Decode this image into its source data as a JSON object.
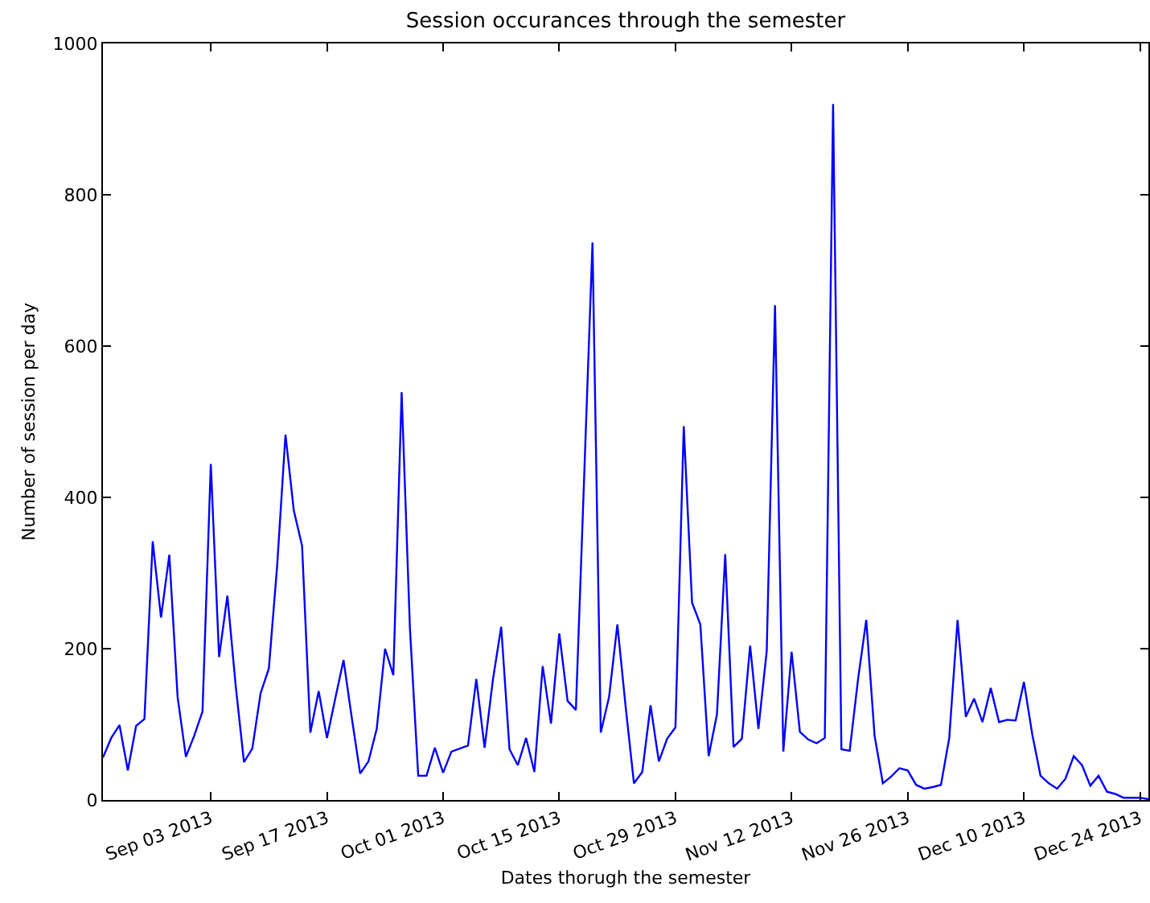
{
  "chart_data": {
    "type": "line",
    "title": "Session occurances through the semester",
    "xlabel": "Dates thorugh the semester",
    "ylabel": "Number of session per day",
    "x": [
      "2013-08-21",
      "2013-08-22",
      "2013-08-23",
      "2013-08-24",
      "2013-08-25",
      "2013-08-26",
      "2013-08-27",
      "2013-08-28",
      "2013-08-29",
      "2013-08-30",
      "2013-08-31",
      "2013-09-01",
      "2013-09-02",
      "2013-09-03",
      "2013-09-04",
      "2013-09-05",
      "2013-09-06",
      "2013-09-07",
      "2013-09-08",
      "2013-09-09",
      "2013-09-10",
      "2013-09-11",
      "2013-09-12",
      "2013-09-13",
      "2013-09-14",
      "2013-09-15",
      "2013-09-16",
      "2013-09-17",
      "2013-09-18",
      "2013-09-19",
      "2013-09-20",
      "2013-09-21",
      "2013-09-22",
      "2013-09-23",
      "2013-09-24",
      "2013-09-25",
      "2013-09-26",
      "2013-09-27",
      "2013-09-28",
      "2013-09-29",
      "2013-09-30",
      "2013-10-01",
      "2013-10-02",
      "2013-10-03",
      "2013-10-04",
      "2013-10-05",
      "2013-10-06",
      "2013-10-07",
      "2013-10-08",
      "2013-10-09",
      "2013-10-10",
      "2013-10-11",
      "2013-10-12",
      "2013-10-13",
      "2013-10-14",
      "2013-10-15",
      "2013-10-16",
      "2013-10-17",
      "2013-10-18",
      "2013-10-19",
      "2013-10-20",
      "2013-10-21",
      "2013-10-22",
      "2013-10-23",
      "2013-10-24",
      "2013-10-25",
      "2013-10-26",
      "2013-10-27",
      "2013-10-28",
      "2013-10-29",
      "2013-10-30",
      "2013-10-31",
      "2013-11-01",
      "2013-11-02",
      "2013-11-03",
      "2013-11-04",
      "2013-11-05",
      "2013-11-06",
      "2013-11-07",
      "2013-11-08",
      "2013-11-09",
      "2013-11-10",
      "2013-11-11",
      "2013-11-12",
      "2013-11-13",
      "2013-11-14",
      "2013-11-15",
      "2013-11-16",
      "2013-11-17",
      "2013-11-18",
      "2013-11-19",
      "2013-11-20",
      "2013-11-21",
      "2013-11-22",
      "2013-11-23",
      "2013-11-24",
      "2013-11-25",
      "2013-11-26",
      "2013-11-27",
      "2013-11-28",
      "2013-11-29",
      "2013-11-30",
      "2013-12-01",
      "2013-12-02",
      "2013-12-03",
      "2013-12-04",
      "2013-12-05",
      "2013-12-06",
      "2013-12-07",
      "2013-12-08",
      "2013-12-09",
      "2013-12-10",
      "2013-12-11",
      "2013-12-12",
      "2013-12-13",
      "2013-12-14",
      "2013-12-15",
      "2013-12-16",
      "2013-12-17",
      "2013-12-18",
      "2013-12-19",
      "2013-12-20",
      "2013-12-21",
      "2013-12-22",
      "2013-12-23",
      "2013-12-24",
      "2013-12-25"
    ],
    "series": [
      {
        "color": "#0000ff",
        "values": [
          56,
          82,
          99,
          39,
          98,
          107,
          342,
          241,
          324,
          136,
          57,
          85,
          117,
          444,
          189,
          270,
          151,
          50,
          68,
          141,
          174,
          310,
          483,
          383,
          336,
          89,
          144,
          82,
          134,
          185,
          108,
          35,
          51,
          94,
          200,
          165,
          539,
          227,
          32,
          32,
          69,
          36,
          64,
          68,
          72,
          160,
          69,
          159,
          229,
          67,
          46,
          82,
          37,
          177,
          101,
          220,
          131,
          119,
          428,
          737,
          89,
          136,
          232,
          123,
          22,
          37,
          125,
          51,
          81,
          96,
          494,
          261,
          232,
          58,
          113,
          325,
          70,
          81,
          204,
          94,
          197,
          654,
          64,
          196,
          90,
          80,
          75,
          82,
          920,
          67,
          65,
          159,
          238,
          85,
          22,
          31,
          42,
          39,
          20,
          15,
          17,
          20,
          82,
          238,
          110,
          134,
          103,
          148,
          103,
          106,
          105,
          156,
          87,
          32,
          22,
          15,
          28,
          58,
          46,
          19,
          32,
          11,
          8,
          3,
          3,
          3,
          1
        ]
      }
    ],
    "xlim": [
      "2013-08-21",
      "2013-12-25"
    ],
    "xticks": [
      {
        "value": "2013-09-03",
        "label": "Sep 03 2013"
      },
      {
        "value": "2013-09-17",
        "label": "Sep 17 2013"
      },
      {
        "value": "2013-10-01",
        "label": "Oct 01 2013"
      },
      {
        "value": "2013-10-15",
        "label": "Oct 15 2013"
      },
      {
        "value": "2013-10-29",
        "label": "Oct 29 2013"
      },
      {
        "value": "2013-11-12",
        "label": "Nov 12 2013"
      },
      {
        "value": "2013-11-26",
        "label": "Nov 26 2013"
      },
      {
        "value": "2013-12-10",
        "label": "Dec 10 2013"
      },
      {
        "value": "2013-12-24",
        "label": "Dec 24 2013"
      }
    ],
    "ylim": [
      0,
      1000
    ],
    "yticks": [
      0,
      200,
      400,
      600,
      800,
      1000
    ],
    "grid": false,
    "marker": "none",
    "line_style": "solid"
  }
}
